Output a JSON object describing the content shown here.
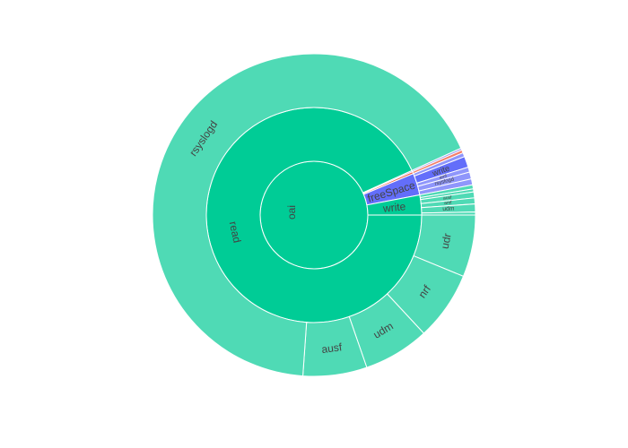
{
  "chart_data": {
    "type": "sunburst",
    "title": "",
    "start_angle_deg": 0,
    "direction": "clockwise",
    "root": {
      "label": "oai",
      "value": 100,
      "color": "#00cc96",
      "children": [
        {
          "label": "read",
          "value": 93.2,
          "color": "#00cc96",
          "children": [
            {
              "label": "udr",
              "value": 6.2,
              "color": "#4fdab5"
            },
            {
              "label": "nrf",
              "value": 6.9,
              "color": "#4fdab5"
            },
            {
              "label": "udm",
              "value": 6.6,
              "color": "#4fdab5"
            },
            {
              "label": "ausf",
              "value": 6.4,
              "color": "#4fdab5"
            },
            {
              "label": "rsyslogd",
              "value": 67.1,
              "color": "#4fdab5"
            }
          ]
        },
        {
          "label": "",
          "value": 0.2,
          "color": "#a1a0f2",
          "children": [
            {
              "label": "",
              "value": 0.2,
              "color": "#a1a0f2"
            }
          ]
        },
        {
          "label": "",
          "value": 0.3,
          "color": "#ef553b",
          "children": [
            {
              "label": "",
              "value": 0.3,
              "color": "#f47f6b"
            }
          ]
        },
        {
          "label": "freeSpace",
          "value": 3.3,
          "color": "#636efa",
          "children": [
            {
              "label": "",
              "value": 0.4,
              "color": "#8f96fb"
            },
            {
              "label": "write",
              "value": 1.1,
              "color": "#636efa"
            },
            {
              "label": "amf",
              "value": 0.5,
              "color": "#8f96fb"
            },
            {
              "label": "rsyslogd",
              "value": 0.7,
              "color": "#8f96fb"
            },
            {
              "label": "",
              "value": 0.6,
              "color": "#8f96fb"
            }
          ]
        },
        {
          "label": "write",
          "value": 3.0,
          "color": "#00cc96",
          "children": [
            {
              "label": "",
              "value": 0.4,
              "color": "#4fdab5"
            },
            {
              "label": "",
              "value": 0.3,
              "color": "#4fdab5"
            },
            {
              "label": "ausf",
              "value": 0.6,
              "color": "#4fdab5"
            },
            {
              "label": "amf",
              "value": 0.6,
              "color": "#4fdab5"
            },
            {
              "label": "udm",
              "value": 0.8,
              "color": "#4fdab5"
            },
            {
              "label": "",
              "value": 0.3,
              "color": "#4fdab5"
            }
          ]
        }
      ]
    }
  }
}
